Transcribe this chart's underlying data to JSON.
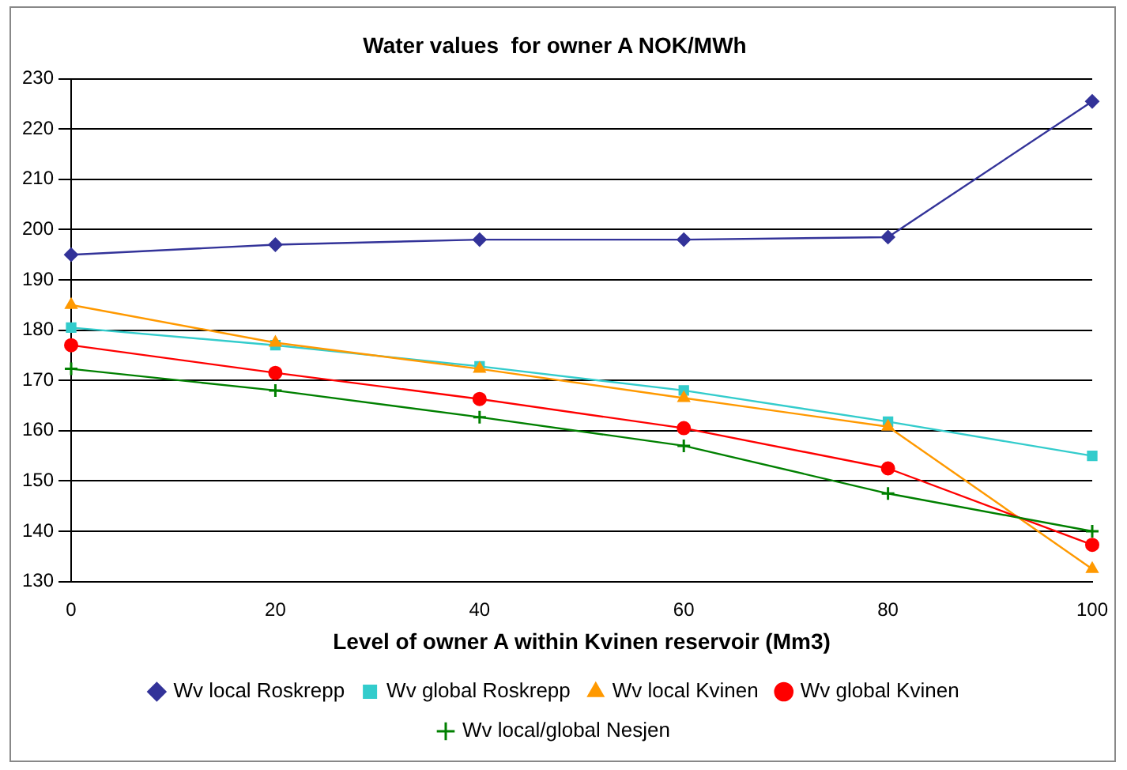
{
  "chart_data": {
    "type": "line",
    "title": "Water values  for owner A NOK/MWh",
    "xlabel": "Level of owner A within Kvinen reservoir (Mm3)",
    "x": [
      0,
      20,
      40,
      60,
      80,
      100
    ],
    "xlim": [
      0,
      100
    ],
    "xticks": [
      0,
      20,
      40,
      60,
      80,
      100
    ],
    "ylim": [
      130,
      230
    ],
    "yticks": [
      130,
      140,
      150,
      160,
      170,
      180,
      190,
      200,
      210,
      220,
      230
    ],
    "grid": "y",
    "legend": "bottom",
    "line_style": "solid",
    "series": [
      {
        "name": "Wv local Roskrepp",
        "color": "#333399",
        "marker": "diamond",
        "values": [
          195,
          197,
          198,
          198,
          198.5,
          225.5
        ]
      },
      {
        "name": "Wv global Roskrepp",
        "color": "#33cccc",
        "marker": "square",
        "values": [
          180.5,
          177,
          172.8,
          168,
          161.8,
          155
        ]
      },
      {
        "name": "Wv local Kvinen",
        "color": "#ff9900",
        "marker": "triangle",
        "values": [
          185,
          177.5,
          172.3,
          166.5,
          160.8,
          132.5
        ]
      },
      {
        "name": "Wv global Kvinen",
        "color": "#ff0000",
        "marker": "circle",
        "values": [
          177,
          171.5,
          166.3,
          160.5,
          152.5,
          137.3
        ]
      },
      {
        "name": "Wv local/global Nesjen",
        "color": "#008000",
        "marker": "cross",
        "values": [
          172.3,
          168,
          162.7,
          157,
          147.5,
          140
        ]
      }
    ]
  }
}
